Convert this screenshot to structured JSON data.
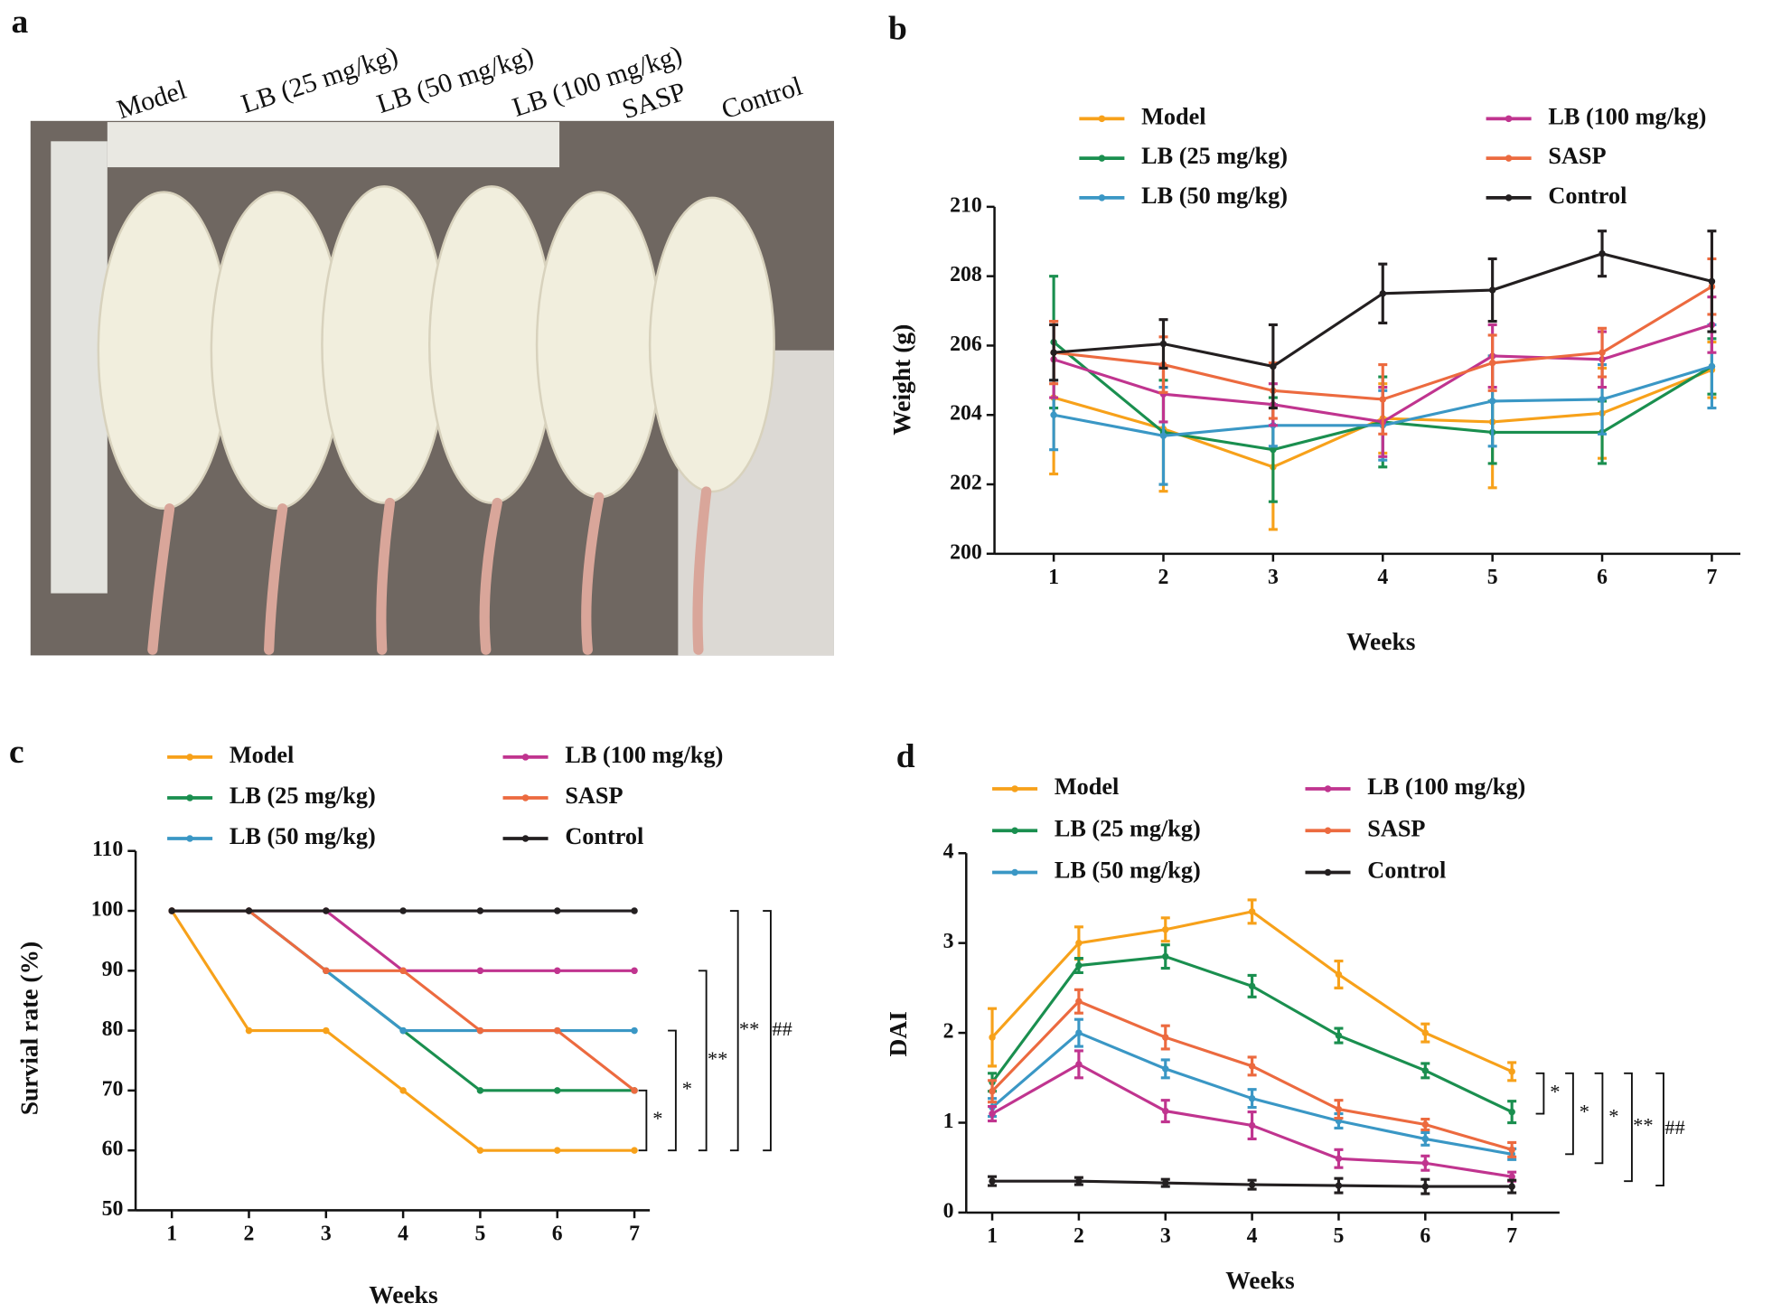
{
  "photo": {
    "label": "a",
    "captions": [
      "Model",
      "LB (25 mg/kg)",
      "LB (50 mg/kg)",
      "LB (100 mg/kg)",
      "SASP",
      "Control"
    ]
  },
  "chart_data": [
    {
      "type": "line",
      "label": "b",
      "xlabel": "Weeks",
      "ylabel": "Weight (g)",
      "x": [
        1,
        2,
        3,
        4,
        5,
        6,
        7
      ],
      "xlim": [
        0.46,
        7.26
      ],
      "xticks": [
        1,
        2,
        3,
        4,
        5,
        6,
        7
      ],
      "ylim": [
        200,
        210
      ],
      "yticks": [
        200,
        202,
        204,
        206,
        208,
        210
      ],
      "series": [
        {
          "name": "Model",
          "color": "#f7a11a",
          "values": [
            204.5,
            203.6,
            202.5,
            203.9,
            203.8,
            204.05,
            205.3
          ],
          "errors": [
            2.2,
            1.8,
            1.8,
            1.0,
            1.9,
            1.3,
            0.8
          ]
        },
        {
          "name": "LB (25 mg/kg)",
          "color": "#1a8f4f",
          "values": [
            206.1,
            203.5,
            203.0,
            203.8,
            203.5,
            203.5,
            205.4
          ],
          "errors": [
            1.9,
            1.5,
            1.5,
            1.3,
            0.9,
            0.9,
            0.8
          ]
        },
        {
          "name": "LB (50 mg/kg)",
          "color": "#3a97c5",
          "values": [
            204.0,
            203.4,
            203.7,
            203.7,
            204.4,
            204.45,
            205.4
          ],
          "errors": [
            1.0,
            1.4,
            0.6,
            1.0,
            1.3,
            1.0,
            1.2
          ]
        },
        {
          "name": "LB (100 mg/kg)",
          "color": "#c0348f",
          "values": [
            205.6,
            204.6,
            204.3,
            203.8,
            205.7,
            205.6,
            206.6
          ],
          "errors": [
            1.1,
            0.8,
            0.6,
            1.0,
            0.9,
            0.8,
            0.8
          ]
        },
        {
          "name": "SASP",
          "color": "#ec6a3f",
          "values": [
            205.8,
            205.45,
            204.7,
            204.45,
            205.5,
            205.8,
            207.7
          ],
          "errors": [
            0.9,
            0.8,
            0.8,
            1.0,
            0.8,
            0.7,
            0.8
          ]
        },
        {
          "name": "Control",
          "color": "#231f20",
          "values": [
            205.8,
            206.05,
            205.4,
            207.5,
            207.6,
            208.65,
            207.85
          ],
          "errors": [
            0.8,
            0.7,
            1.2,
            0.85,
            0.9,
            0.65,
            1.45
          ]
        }
      ]
    },
    {
      "type": "line",
      "label": "c",
      "xlabel": "Weeks",
      "ylabel": "Survial rate (%)",
      "x": [
        1,
        2,
        3,
        4,
        5,
        6,
        7
      ],
      "xlim": [
        0.53,
        7.2
      ],
      "xticks": [
        1,
        2,
        3,
        4,
        5,
        6,
        7
      ],
      "ylim": [
        50,
        110
      ],
      "yticks": [
        50,
        60,
        70,
        80,
        90,
        100,
        110
      ],
      "series": [
        {
          "name": "Model",
          "color": "#f7a11a",
          "values": [
            100,
            80,
            80,
            70,
            60,
            60,
            60
          ]
        },
        {
          "name": "LB (25 mg/kg)",
          "color": "#1a8f4f",
          "values": [
            100,
            100,
            90,
            80,
            70,
            70,
            70
          ]
        },
        {
          "name": "LB (50 mg/kg)",
          "color": "#3a97c5",
          "values": [
            100,
            100,
            90,
            80,
            80,
            80,
            80
          ]
        },
        {
          "name": "LB (100 mg/kg)",
          "color": "#c0348f",
          "values": [
            100,
            100,
            100,
            90,
            90,
            90,
            90
          ]
        },
        {
          "name": "SASP",
          "color": "#ec6a3f",
          "values": [
            100,
            100,
            90,
            90,
            80,
            80,
            70
          ]
        },
        {
          "name": "Control",
          "color": "#231f20",
          "values": [
            100,
            100,
            100,
            100,
            100,
            100,
            100
          ]
        }
      ],
      "annotations": [
        {
          "range": [
            60,
            70
          ],
          "label": "*"
        },
        {
          "range": [
            60,
            80
          ],
          "label": "*"
        },
        {
          "range": [
            60,
            90
          ],
          "label": "**"
        },
        {
          "range": [
            60,
            100
          ],
          "label": "**"
        },
        {
          "range": [
            60,
            100
          ],
          "label": "##"
        }
      ]
    },
    {
      "type": "line",
      "label": "d",
      "xlabel": "Weeks",
      "ylabel": "DAI",
      "x": [
        1,
        2,
        3,
        4,
        5,
        6,
        7
      ],
      "xlim": [
        0.7,
        7.55
      ],
      "xticks": [
        1,
        2,
        3,
        4,
        5,
        6,
        7
      ],
      "ylim": [
        0,
        4
      ],
      "yticks": [
        0,
        1,
        2,
        3,
        4
      ],
      "series": [
        {
          "name": "Model",
          "color": "#f7a11a",
          "values": [
            1.95,
            3.0,
            3.15,
            3.35,
            2.65,
            2.0,
            1.57
          ],
          "errors": [
            0.32,
            0.18,
            0.13,
            0.13,
            0.15,
            0.1,
            0.1
          ]
        },
        {
          "name": "LB (25 mg/kg)",
          "color": "#1a8f4f",
          "values": [
            1.45,
            2.75,
            2.85,
            2.52,
            1.97,
            1.58,
            1.12
          ],
          "errors": [
            0.1,
            0.08,
            0.13,
            0.12,
            0.08,
            0.08,
            0.12
          ]
        },
        {
          "name": "LB (50 mg/kg)",
          "color": "#3a97c5",
          "values": [
            1.17,
            2.0,
            1.6,
            1.27,
            1.02,
            0.82,
            0.65
          ],
          "errors": [
            0.1,
            0.15,
            0.1,
            0.1,
            0.08,
            0.07,
            0.06
          ]
        },
        {
          "name": "LB (100 mg/kg)",
          "color": "#c0348f",
          "values": [
            1.1,
            1.65,
            1.13,
            0.97,
            0.6,
            0.55,
            0.4
          ],
          "errors": [
            0.08,
            0.15,
            0.12,
            0.15,
            0.1,
            0.08,
            0.05
          ]
        },
        {
          "name": "SASP",
          "color": "#ec6a3f",
          "values": [
            1.35,
            2.35,
            1.95,
            1.63,
            1.15,
            0.98,
            0.7
          ],
          "errors": [
            0.12,
            0.13,
            0.13,
            0.1,
            0.1,
            0.06,
            0.08
          ]
        },
        {
          "name": "Control",
          "color": "#231f20",
          "values": [
            0.35,
            0.35,
            0.33,
            0.31,
            0.3,
            0.29,
            0.29
          ],
          "errors": [
            0.05,
            0.04,
            0.04,
            0.05,
            0.08,
            0.08,
            0.07
          ]
        }
      ],
      "annotations": [
        {
          "range": [
            1.1,
            1.55
          ],
          "label": "*"
        },
        {
          "range": [
            0.65,
            1.55
          ],
          "label": "*"
        },
        {
          "range": [
            0.55,
            1.55
          ],
          "label": "*"
        },
        {
          "range": [
            0.35,
            1.55
          ],
          "label": "**"
        },
        {
          "range": [
            0.3,
            1.55
          ],
          "label": "##"
        }
      ]
    }
  ]
}
